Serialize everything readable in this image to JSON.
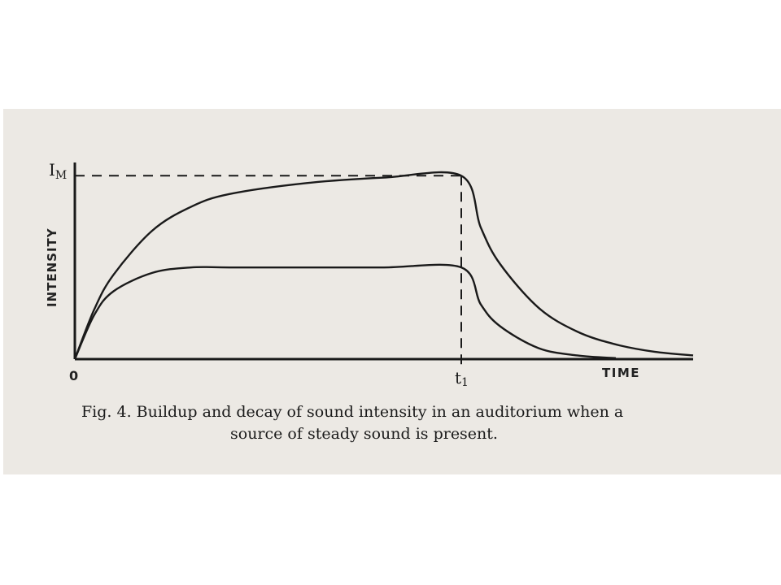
{
  "caption": {
    "line1": "Fig. 4. Buildup and decay of sound intensity in an auditorium when a",
    "line2": "source of steady sound is present."
  },
  "colors": {
    "paper": "#ece9e4",
    "ink": "#1a1a1a"
  },
  "chart_data": {
    "type": "line",
    "title": "",
    "xlabel": "TIME",
    "ylabel": "INTENSITY",
    "origin_label": "0",
    "t1_label": "t1",
    "im_label": "IM",
    "xlim": [
      0,
      1.6
    ],
    "ylim": [
      0,
      1.05
    ],
    "t1": 1.0,
    "IM": 1.0,
    "grid": false,
    "series": [
      {
        "x": [
          0,
          0.05,
          0.1,
          0.2,
          0.3,
          0.4,
          0.6,
          0.8,
          1.0,
          1.05,
          1.1,
          1.2,
          1.3,
          1.4,
          1.5,
          1.6
        ],
        "y": [
          0,
          0.27,
          0.46,
          0.7,
          0.83,
          0.9,
          0.96,
          0.99,
          1.0,
          0.72,
          0.52,
          0.28,
          0.15,
          0.08,
          0.04,
          0.02
        ]
      },
      {
        "x": [
          0,
          0.05,
          0.1,
          0.2,
          0.3,
          0.4,
          0.6,
          0.8,
          1.0,
          1.05,
          1.1,
          1.2,
          1.3,
          1.4
        ],
        "y": [
          0,
          0.24,
          0.37,
          0.47,
          0.5,
          0.5,
          0.5,
          0.5,
          0.5,
          0.3,
          0.18,
          0.06,
          0.02,
          0.005
        ]
      }
    ]
  }
}
